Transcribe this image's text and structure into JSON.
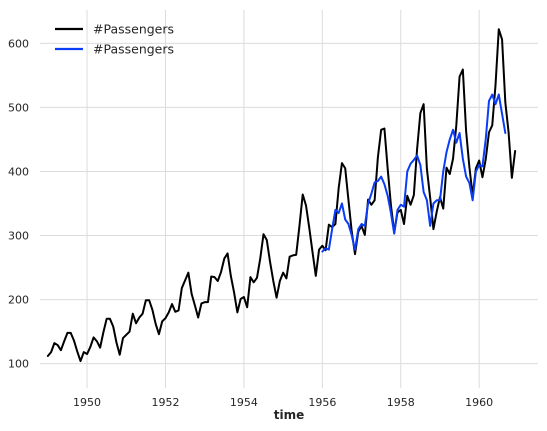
{
  "chart_data": {
    "type": "line",
    "title": "",
    "xlabel": "time",
    "ylabel": "",
    "xlim": [
      1948.8,
      1961.5
    ],
    "ylim": [
      62,
      652
    ],
    "x_ticks": [
      {
        "value": 1950,
        "label": "1950"
      },
      {
        "value": 1952,
        "label": "1952"
      },
      {
        "value": 1954,
        "label": "1954"
      },
      {
        "value": 1956,
        "label": "1956"
      },
      {
        "value": 1958,
        "label": "1958"
      },
      {
        "value": 1960,
        "label": "1960"
      }
    ],
    "y_ticks": [
      {
        "value": 100,
        "label": "100"
      },
      {
        "value": 200,
        "label": "200"
      },
      {
        "value": 300,
        "label": "300"
      },
      {
        "value": 400,
        "label": "400"
      },
      {
        "value": 500,
        "label": "500"
      },
      {
        "value": 600,
        "label": "600"
      }
    ],
    "grid": true,
    "legend_position": "top-left",
    "series": [
      {
        "name": "#Passengers",
        "color": "#000000",
        "start": 1949.0,
        "step_months": 1,
        "values": [
          112,
          118,
          132,
          129,
          121,
          135,
          148,
          148,
          136,
          119,
          104,
          118,
          115,
          126,
          141,
          135,
          125,
          149,
          170,
          170,
          158,
          133,
          114,
          140,
          145,
          150,
          178,
          163,
          172,
          178,
          199,
          199,
          184,
          162,
          146,
          166,
          171,
          180,
          193,
          181,
          183,
          218,
          230,
          242,
          209,
          191,
          172,
          194,
          196,
          196,
          236,
          235,
          229,
          243,
          264,
          272,
          237,
          211,
          180,
          201,
          204,
          188,
          235,
          227,
          234,
          264,
          302,
          293,
          259,
          229,
          203,
          229,
          242,
          233,
          267,
          269,
          270,
          315,
          364,
          347,
          312,
          274,
          237,
          278,
          284,
          277,
          317,
          313,
          318,
          374,
          413,
          405,
          355,
          306,
          271,
          306,
          315,
          301,
          356,
          348,
          355,
          422,
          465,
          467,
          404,
          347,
          305,
          336,
          340,
          318,
          362,
          348,
          363,
          435,
          491,
          505,
          404,
          359,
          310,
          337,
          360,
          342,
          406,
          396,
          420,
          472,
          548,
          559,
          463,
          407,
          362,
          405,
          417,
          391,
          419,
          461,
          472,
          535,
          622,
          606,
          508,
          461,
          390,
          432
        ]
      },
      {
        "name": "#Passengers",
        "color": "#0a3df5",
        "start": 1956.0,
        "step_months": 1,
        "values": [
          275,
          280,
          278,
          310,
          340,
          335,
          350,
          325,
          318,
          300,
          278,
          310,
          318,
          315,
          350,
          365,
          383,
          385,
          392,
          380,
          362,
          335,
          303,
          340,
          348,
          345,
          400,
          412,
          418,
          425,
          410,
          368,
          355,
          315,
          350,
          355,
          355,
          400,
          430,
          450,
          465,
          445,
          460,
          420,
          392,
          382,
          355,
          400,
          410,
          408,
          450,
          510,
          520,
          505,
          520,
          490,
          460
        ]
      }
    ]
  }
}
